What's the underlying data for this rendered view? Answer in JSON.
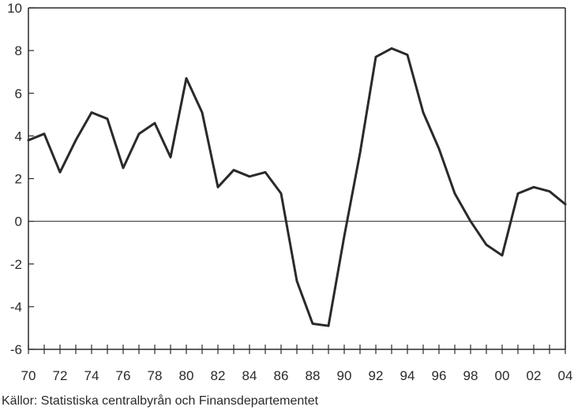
{
  "chart_data": {
    "type": "line",
    "title": "",
    "xlabel": "",
    "ylabel": "",
    "xlim": [
      1970,
      2004
    ],
    "ylim": [
      -6,
      10
    ],
    "x_tick_values": [
      1970,
      1972,
      1974,
      1976,
      1978,
      1980,
      1982,
      1984,
      1986,
      1988,
      1990,
      1992,
      1994,
      1996,
      1998,
      2000,
      2002,
      2004
    ],
    "x_tick_labels": [
      "70",
      "72",
      "74",
      "76",
      "78",
      "80",
      "82",
      "84",
      "86",
      "88",
      "90",
      "92",
      "94",
      "96",
      "98",
      "00",
      "02",
      "04"
    ],
    "y_ticks": [
      -6,
      -4,
      -2,
      0,
      2,
      4,
      6,
      8,
      10
    ],
    "y_tick_labels": [
      "-6",
      "-4",
      "-2",
      "0",
      "2",
      "4",
      "6",
      "8",
      "10"
    ],
    "grid": false,
    "zero_line": true,
    "series": [
      {
        "x": [
          1970,
          1971,
          1972,
          1973,
          1974,
          1975,
          1976,
          1977,
          1978,
          1979,
          1980,
          1981,
          1982,
          1983,
          1984,
          1985,
          1986,
          1987,
          1988,
          1989,
          1990,
          1991,
          1992,
          1993,
          1994,
          1995,
          1996,
          1997,
          1998,
          1999,
          2000,
          2001,
          2002,
          2003,
          2004
        ],
        "values": [
          3.8,
          4.1,
          2.3,
          3.8,
          5.1,
          4.8,
          2.5,
          4.1,
          4.6,
          3.0,
          6.7,
          5.1,
          1.6,
          2.4,
          2.1,
          2.3,
          1.3,
          -2.8,
          -4.8,
          -4.9,
          -0.7,
          3.2,
          7.7,
          8.1,
          7.8,
          5.1,
          3.4,
          1.3,
          0.0,
          -1.1,
          -1.6,
          1.3,
          1.6,
          1.4,
          0.8
        ],
        "color": "#2a2a2a"
      }
    ]
  },
  "source_note": "Källor: Statistiska centralbyrån och Finansdepartementet"
}
